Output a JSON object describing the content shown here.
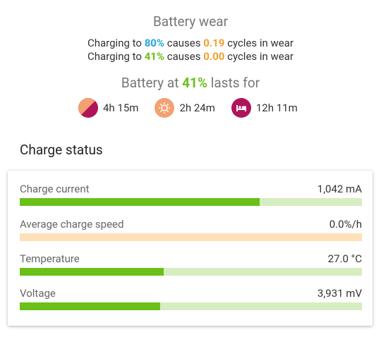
{
  "wear": {
    "title": "Battery wear",
    "lines": [
      {
        "prefix": "Charging to",
        "percent": "80%",
        "middle": "causes",
        "cycles": "0.19",
        "suffix": "cycles in wear"
      },
      {
        "prefix": "Charging to",
        "percent": "41%",
        "middle": "causes",
        "cycles": "0.00",
        "suffix": "cycles in wear"
      }
    ]
  },
  "lasts": {
    "prefix": "Battery at",
    "percent": "41%",
    "suffix": "lasts for",
    "items": [
      "4h 15m",
      "2h 24m",
      "12h 11m"
    ]
  },
  "charge_status": {
    "title": "Charge status",
    "rows": [
      {
        "label": "Charge current",
        "value": "1,042 mA",
        "level": 0.7
      },
      {
        "label": "Average charge speed",
        "value": "0.0%/h",
        "level": 0
      },
      {
        "label": "Temperature",
        "value": "27.0 °C",
        "level": 0.42
      },
      {
        "label": "Voltage",
        "value": "3,931 mV",
        "level": 0.41
      }
    ]
  }
}
